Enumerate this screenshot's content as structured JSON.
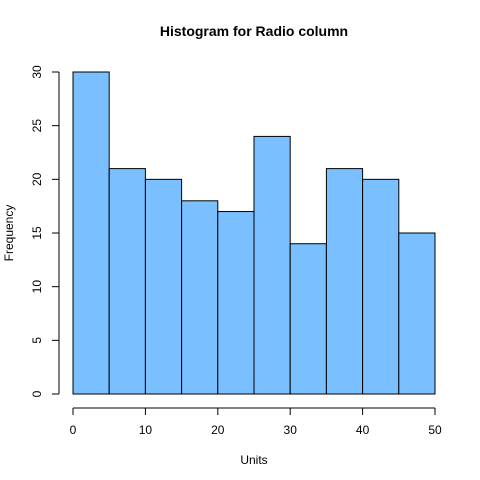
{
  "chart_data": {
    "type": "bar",
    "title": "Histogram for  Radio column",
    "xlabel": "Units",
    "ylabel": "Frequency",
    "bins": [
      {
        "from": 0,
        "to": 5,
        "value": 30
      },
      {
        "from": 5,
        "to": 10,
        "value": 21
      },
      {
        "from": 10,
        "to": 15,
        "value": 20
      },
      {
        "from": 15,
        "to": 20,
        "value": 18
      },
      {
        "from": 20,
        "to": 25,
        "value": 17
      },
      {
        "from": 25,
        "to": 30,
        "value": 24
      },
      {
        "from": 30,
        "to": 35,
        "value": 14
      },
      {
        "from": 35,
        "to": 40,
        "value": 21
      },
      {
        "from": 40,
        "to": 45,
        "value": 20
      },
      {
        "from": 45,
        "to": 50,
        "value": 15
      }
    ],
    "xlim": [
      0,
      50
    ],
    "ylim": [
      0,
      30
    ],
    "x_ticks": [
      0,
      10,
      20,
      30,
      40,
      50
    ],
    "x_tick_labels": [
      "0",
      "10",
      "20",
      "30",
      "40",
      "50"
    ],
    "y_ticks": [
      0,
      5,
      10,
      15,
      20,
      25,
      30
    ],
    "y_tick_labels": [
      "0",
      "5",
      "10",
      "15",
      "20",
      "25",
      "30"
    ],
    "bar_color": "#7ABFFF",
    "bar_edge_color": "#000000",
    "grid": false,
    "legend": "none"
  }
}
